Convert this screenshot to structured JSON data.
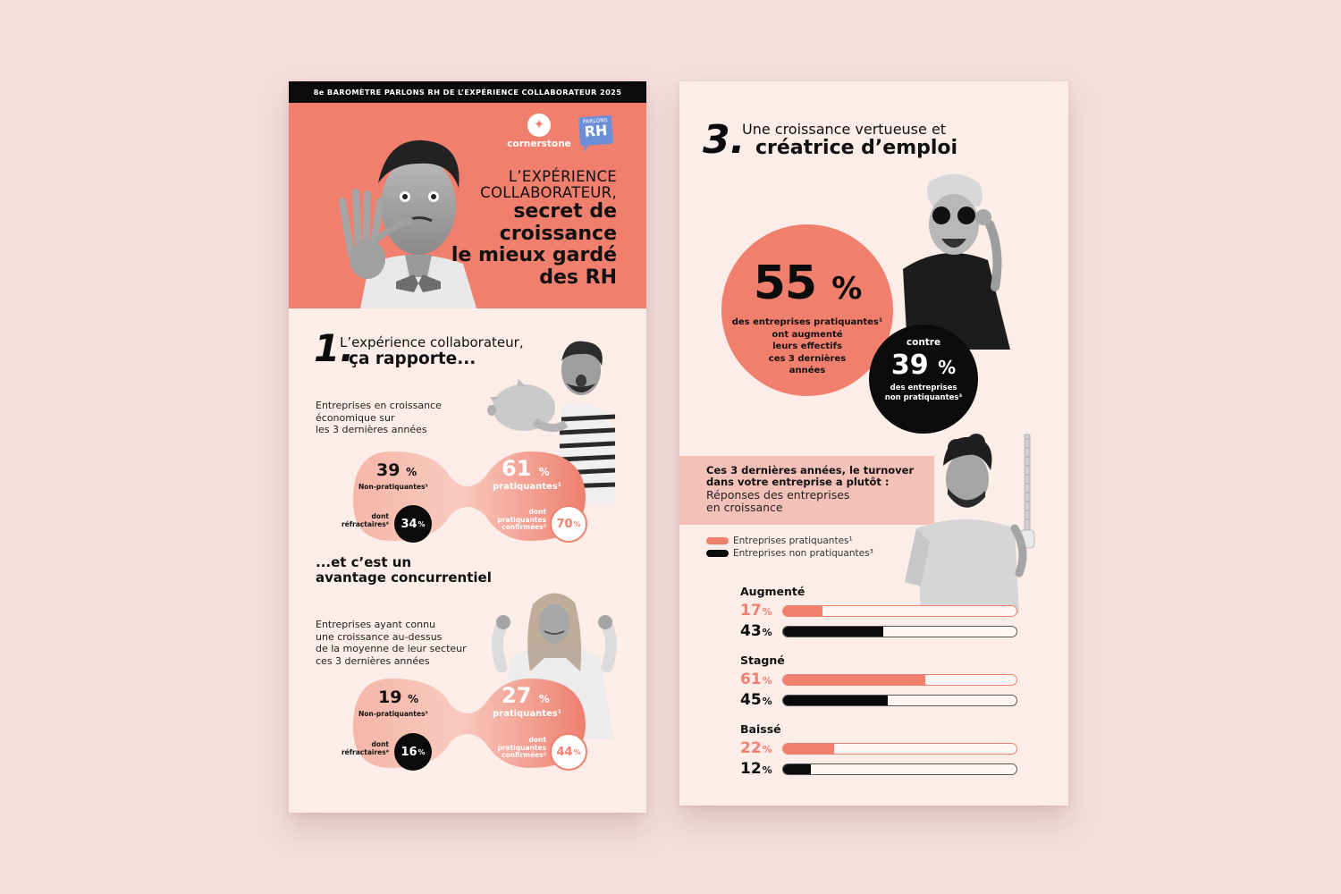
{
  "colors": {
    "background": "#f3dfdd",
    "sheet": "#fcede8",
    "accent": "#f07f6e",
    "accent_light": "#f4c1b8",
    "black": "#0b0b0b",
    "logo_blue": "#6d8fd8"
  },
  "left_page": {
    "banner": "8e BAROMÈTRE PARLONS RH DE L’EXPÉRIENCE COLLABORATEUR 2025",
    "logos": {
      "cornerstone": "cornerstone",
      "parlons_rh_small": "PARLONS",
      "parlons_rh_big": "RH"
    },
    "hero": {
      "title_light_1": "L’EXPÉRIENCE",
      "title_light_2": "COLLABORATEUR,",
      "title_bold_1": "secret de",
      "title_bold_2": "croissance",
      "title_bold_3": "le mieux gardé",
      "title_bold_4": "des RH"
    },
    "section1": {
      "number": "1.",
      "title_light": "L’expérience collaborateur,",
      "title_bold": "ça rapporte...",
      "description": [
        "Entreprises en croissance",
        "économique sur",
        "les 3 dernières années"
      ],
      "stats": {
        "non_practicing_value": "39",
        "non_practicing_label": "Non-pratiquantes³",
        "practicing_value": "61",
        "practicing_label": "pratiquantes¹",
        "refractory_label_1": "dont",
        "refractory_label_2": "réfractaires⁴",
        "refractory_value": "34",
        "confirmed_label_1": "dont",
        "confirmed_label_2": "pratiquantes",
        "confirmed_label_3": "confirmées²",
        "confirmed_value": "70",
        "percent": "%"
      }
    },
    "section2": {
      "title_1": "...et c’est un",
      "title_2": "avantage concurrentiel",
      "description": [
        "Entreprises ayant connu",
        "une croissance au-dessus",
        "de la moyenne de leur secteur",
        "ces 3 dernières années"
      ],
      "stats": {
        "non_practicing_value": "19",
        "non_practicing_label": "Non-pratiquantes³",
        "practicing_value": "27",
        "practicing_label": "pratiquantes¹",
        "refractory_label_1": "dont",
        "refractory_label_2": "réfractaires⁴",
        "refractory_value": "16",
        "confirmed_label_1": "dont",
        "confirmed_label_2": "pratiquantes",
        "confirmed_label_3": "confirmées²",
        "confirmed_value": "44",
        "percent": "%"
      }
    }
  },
  "right_page": {
    "section3": {
      "number": "3.",
      "title_light": "Une croissance vertueuse et",
      "title_bold": "créatrice d’emploi"
    },
    "big_stat": {
      "value": "55",
      "percent": "%",
      "lines": [
        "des entreprises pratiquantes¹",
        "ont augmenté",
        "leurs effectifs",
        "ces 3 dernières",
        "années"
      ]
    },
    "small_stat": {
      "contre": "contre",
      "value": "39",
      "percent": "%",
      "lines": [
        "des entreprises",
        "non pratiquantes³"
      ]
    },
    "question": {
      "bold_1": "Ces 3 dernières années, le turnover",
      "bold_2": "dans votre entreprise a plutôt :",
      "sub_1": "Réponses des entreprises",
      "sub_2": "en croissance"
    },
    "legend": [
      {
        "label": "Entreprises pratiquantes¹",
        "color": "#f07f6e"
      },
      {
        "label": "Entreprises non pratiquantes³",
        "color": "#0b0b0b"
      }
    ]
  },
  "chart_data": {
    "type": "bar",
    "title": "Ces 3 dernières années, le turnover dans votre entreprise a plutôt :",
    "subtitle": "Réponses des entreprises en croissance",
    "categories": [
      "Augmenté",
      "Stagné",
      "Baissé"
    ],
    "series": [
      {
        "name": "Entreprises pratiquantes¹",
        "color": "#f07f6e",
        "values": [
          17,
          61,
          22
        ]
      },
      {
        "name": "Entreprises non pratiquantes³",
        "color": "#0b0b0b",
        "values": [
          43,
          45,
          12
        ]
      }
    ],
    "unit": "%",
    "xlim": [
      0,
      100
    ],
    "orientation": "horizontal",
    "legend_position": "top-left",
    "grid": false
  }
}
